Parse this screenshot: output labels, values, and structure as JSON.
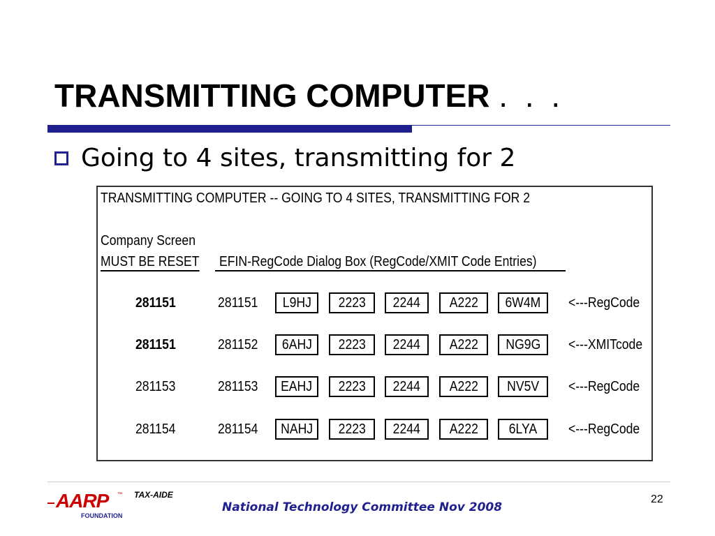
{
  "slide": {
    "title": "TRANSMITTING COMPUTER",
    "title_dots": ". . .",
    "bullet": "Going to 4 sites, transmitting for 2",
    "colors": {
      "accent": "#1f1f8f",
      "logo_red": "#cc0000"
    }
  },
  "figure": {
    "title": "TRANSMITTING COMPUTER -- GOING TO 4 SITES, TRANSMITTING FOR 2",
    "company_screen_label": "Company Screen",
    "must_reset_label": "MUST BE RESET",
    "efin_header": "EFIN-RegCode Dialog Box (RegCode/XMIT Code Entries)",
    "rows": [
      {
        "company": "281151",
        "bold": true,
        "efin": "281151",
        "codes": [
          "L9HJ",
          "2223",
          "2244",
          "A222",
          "6W4M"
        ],
        "note": "<---RegCode"
      },
      {
        "company": "281151",
        "bold": true,
        "efin": "281152",
        "codes": [
          "6AHJ",
          "2223",
          "2244",
          "A222",
          "NG9G"
        ],
        "note": "<---XMITcode"
      },
      {
        "company": "281153",
        "bold": false,
        "efin": "281153",
        "codes": [
          "EAHJ",
          "2223",
          "2244",
          "A222",
          "NV5V"
        ],
        "note": "<---RegCode"
      },
      {
        "company": "281154",
        "bold": false,
        "efin": "281154",
        "codes": [
          "NAHJ",
          "2223",
          "2244",
          "A222",
          "6LYA"
        ],
        "note": "<---RegCode"
      }
    ]
  },
  "footer": {
    "logo_text": "AARP",
    "logo_tm": "™",
    "logo_sub": "FOUNDATION",
    "logo_tag": "TAX-AIDE",
    "text": "National Technology Committee Nov 2008",
    "page_number": "22"
  }
}
